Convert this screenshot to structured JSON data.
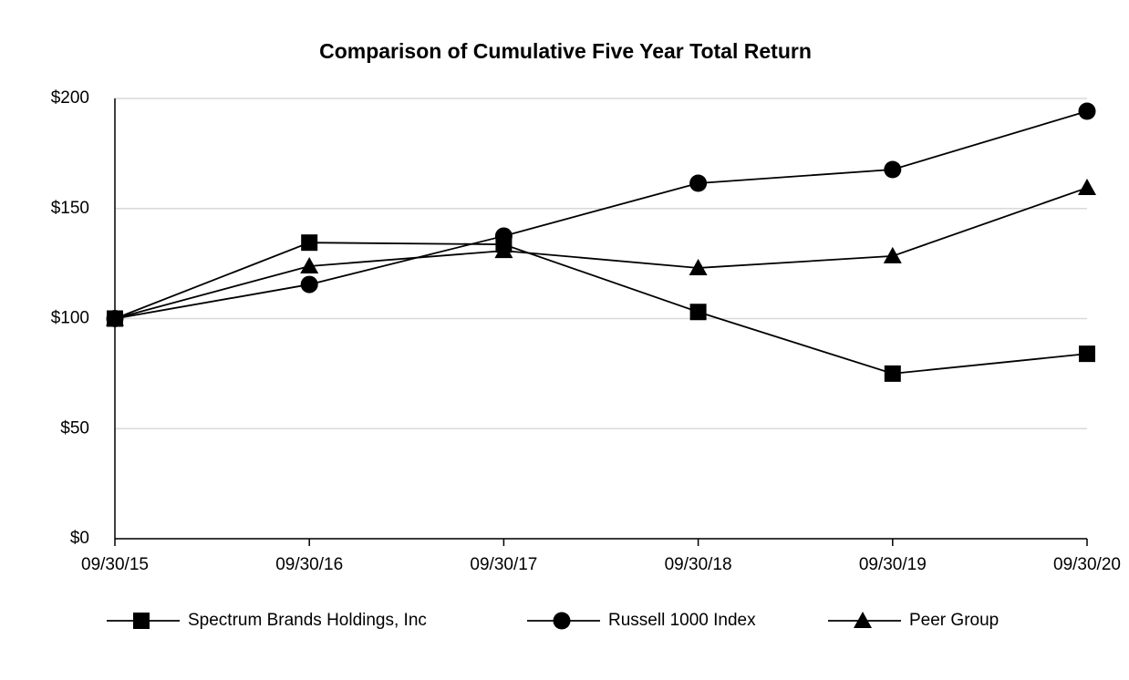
{
  "chart_data": {
    "type": "line",
    "title": "Comparison of Cumulative Five Year Total Return",
    "categories": [
      "09/30/15",
      "09/30/16",
      "09/30/17",
      "09/30/18",
      "09/30/19",
      "09/30/20"
    ],
    "series": [
      {
        "name": "Spectrum Brands Holdings, Inc",
        "color": "#000000",
        "marker": "square",
        "values": [
          100,
          134.5,
          133.7,
          103,
          75,
          84
        ]
      },
      {
        "name": "Russell 1000 Index",
        "color": "#000000",
        "marker": "circle",
        "values": [
          100,
          115.5,
          137.5,
          161.5,
          167.7,
          194.2
        ]
      },
      {
        "name": "Peer Group",
        "color": "#000000",
        "marker": "triangle",
        "values": [
          100,
          123.8,
          130.8,
          123,
          128.4,
          159.4
        ]
      }
    ],
    "ylim": [
      0,
      200
    ],
    "yticks": [
      {
        "value": 0,
        "label": "$0"
      },
      {
        "value": 50,
        "label": "$50"
      },
      {
        "value": 100,
        "label": "$100"
      },
      {
        "value": 150,
        "label": "$150"
      },
      {
        "value": 200,
        "label": "$200"
      }
    ],
    "grid": true,
    "legend": "bottom"
  }
}
